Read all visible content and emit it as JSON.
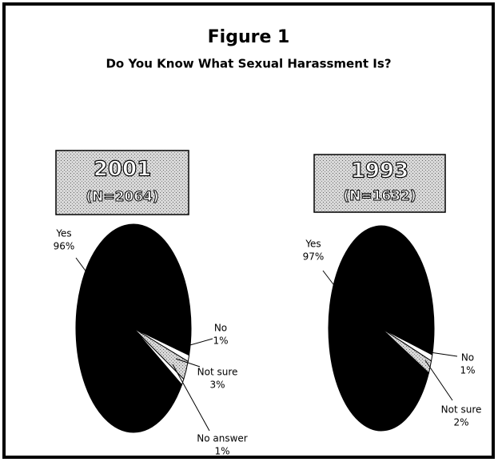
{
  "figure": {
    "title": "Figure 1",
    "subtitle": "Do You Know What Sexual Harassment Is?"
  },
  "chart_data": [
    {
      "type": "pie",
      "title": "2001",
      "subtitle": "(N=2064)",
      "categories": [
        "Yes",
        "No",
        "Not sure",
        "No answer"
      ],
      "values": [
        96,
        1,
        3,
        1
      ],
      "value_labels": [
        "96%",
        "1%",
        "3%",
        "1%"
      ],
      "colors": [
        "#000000",
        "#ffffff",
        "#555555",
        "#ffffff"
      ]
    },
    {
      "type": "pie",
      "title": "1993",
      "subtitle": "(N=1632)",
      "categories": [
        "Yes",
        "No",
        "Not sure"
      ],
      "values": [
        97,
        1,
        2
      ],
      "value_labels": [
        "97%",
        "1%",
        "2%"
      ],
      "colors": [
        "#000000",
        "#ffffff",
        "#555555"
      ]
    }
  ]
}
